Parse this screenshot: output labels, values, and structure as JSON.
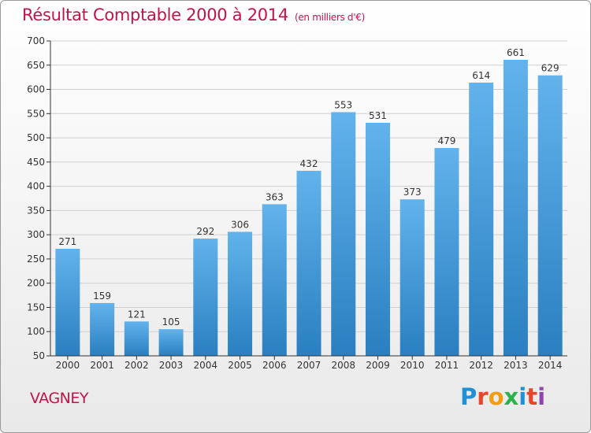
{
  "header": {
    "title": "Résultat Comptable 2000 à 2014",
    "subtitle": "(en milliers d'€)"
  },
  "footer": {
    "location": "VAGNEY",
    "brand": "Proxiti",
    "brand_colors": [
      "#1f8fd6",
      "#e8452b",
      "#f39c12",
      "#2bb24c",
      "#1f8fd6",
      "#e8452b",
      "#8e44ad"
    ]
  },
  "colors": {
    "title": "#c0144a",
    "bar_light": "#62b3ec",
    "bar_dark": "#2a7fc0",
    "grid": "#d0d0d0",
    "axis": "#333333"
  },
  "chart_data": {
    "type": "bar",
    "title": "Résultat Comptable 2000 à 2014",
    "subtitle": "(en milliers d'€)",
    "categories": [
      "2000",
      "2001",
      "2002",
      "2003",
      "2004",
      "2005",
      "2006",
      "2007",
      "2008",
      "2009",
      "2010",
      "2011",
      "2012",
      "2013",
      "2014"
    ],
    "values": [
      271,
      159,
      121,
      105,
      292,
      306,
      363,
      432,
      553,
      531,
      373,
      479,
      614,
      661,
      629
    ],
    "ylim": [
      50,
      700
    ],
    "yticks": [
      50,
      100,
      150,
      200,
      250,
      300,
      350,
      400,
      450,
      500,
      550,
      600,
      650,
      700
    ],
    "grid": true,
    "data_labels": true
  }
}
